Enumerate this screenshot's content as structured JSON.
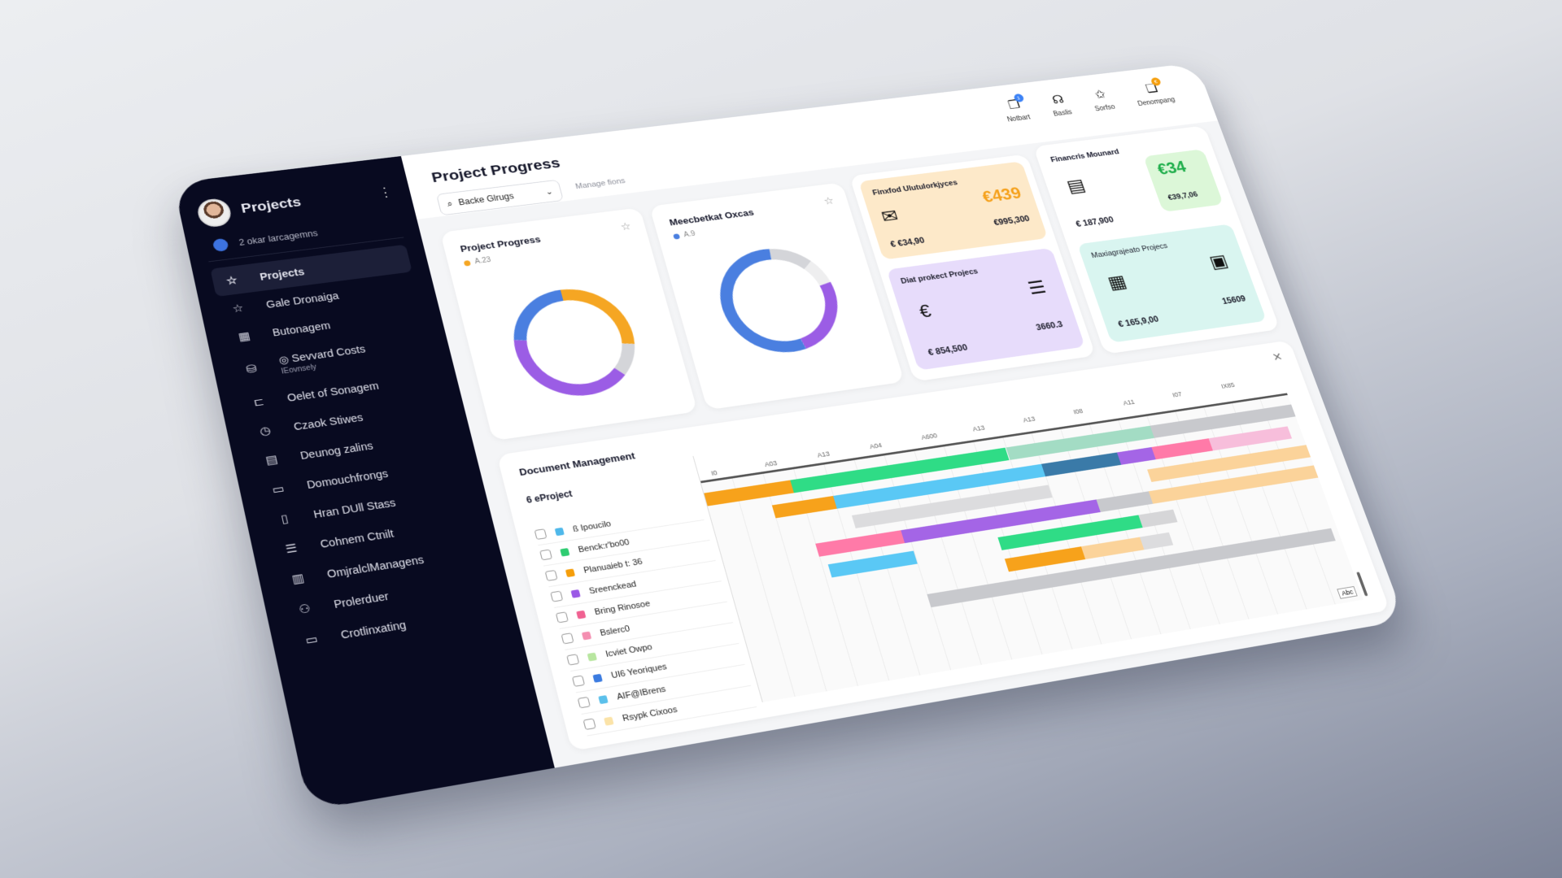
{
  "sidebar": {
    "title": "Projects",
    "subtitle": "2 okar larcagemns",
    "items": [
      {
        "label": "Projects",
        "icon": "star-icon",
        "glyph": "☆",
        "active": true
      },
      {
        "label": "Gale Dronaiga",
        "icon": "star-icon",
        "glyph": "☆"
      },
      {
        "label": "Butonagem",
        "icon": "board-icon",
        "glyph": "▦"
      },
      {
        "label": "◎ Sevvard Costs",
        "sub": "IEovnsely",
        "icon": "database-icon",
        "glyph": "⛁"
      },
      {
        "label": "Oelet of Sonagem",
        "icon": "folder-sync-icon",
        "glyph": "⊏"
      },
      {
        "label": "Czaok Stiwes",
        "icon": "clock-icon",
        "glyph": "◷"
      },
      {
        "label": "Deunog zalins",
        "icon": "calendar-icon",
        "glyph": "▤"
      },
      {
        "label": "Domouchfrongs",
        "icon": "folder-icon",
        "glyph": "▭"
      },
      {
        "label": "Hran DUll Stass",
        "icon": "tablet-icon",
        "glyph": "▯"
      },
      {
        "label": "Cohnem Ctnilt",
        "icon": "list-icon",
        "glyph": "☰"
      },
      {
        "label": "OmjralclManagens",
        "icon": "document-icon",
        "glyph": "▥"
      },
      {
        "label": "Prolerduer",
        "icon": "team-icon",
        "glyph": "⚇"
      },
      {
        "label": "Crotlinxating",
        "icon": "window-icon",
        "glyph": "▭"
      }
    ]
  },
  "header": {
    "title": "Project Progress",
    "search_value": "Backe Glrugs",
    "manage_link": "Manage fions",
    "icons": [
      {
        "label": "Notbart",
        "glyph": "❐",
        "badge": "1",
        "badge_color": "#3b82f6"
      },
      {
        "label": "Baslis",
        "glyph": "☊"
      },
      {
        "label": "Sorfso",
        "glyph": "✩"
      },
      {
        "label": "Denompang",
        "glyph": "❏",
        "badge": "€",
        "badge_color": "#f59e0b"
      }
    ]
  },
  "cards": {
    "donut1": {
      "title": "Project Progress",
      "legend": "A.23",
      "legend_color": "#f5a623"
    },
    "donut2": {
      "title": "Meecbetkat Oxcas",
      "legend": "A.9",
      "legend_color": "#4a7fe0"
    },
    "orange": {
      "title": "Finxfod Ulutulorkjyces",
      "big": "€439",
      "v1": "€ €34,90",
      "v2": "€995,300"
    },
    "purple": {
      "title": "Diat prokect Projecs",
      "v1": "€ 854,500",
      "v2": "3660.3"
    },
    "financial": {
      "title": "Financris Mounard",
      "big": "€34",
      "v_green": "€39,7,06",
      "v1": "€ 187,900"
    },
    "teal": {
      "title": "Maxiagrajeato Projecs",
      "v1": "€ 165,9,00",
      "v2": "15609"
    }
  },
  "gantt": {
    "title": "Document Management",
    "subtitle": "6 eProject",
    "abc": "Abc",
    "timeline_labels": [
      "I0",
      "A03",
      "A13",
      "A04",
      "A600",
      "A13",
      "A13",
      "I08",
      "A11",
      "I07",
      "IX85"
    ],
    "rows": [
      {
        "label": "ß Ipoucilo",
        "color": "#4fb8ea"
      },
      {
        "label": "Benck:r'bo00",
        "color": "#2ecc71"
      },
      {
        "label": "Planuaieb t: 36",
        "color": "#f59e0b"
      },
      {
        "label": "Sreenckead",
        "color": "#9b59e6"
      },
      {
        "label": "Bring Rinosoe",
        "color": "#f06292"
      },
      {
        "label": "Bslerc0",
        "color": "#f48fb1"
      },
      {
        "label": "Icviet Owpo",
        "color": "#b8e6a0"
      },
      {
        "label": "UI6 Yeoriques",
        "color": "#3b7be0"
      },
      {
        "label": "AIF@IBrens",
        "color": "#5bc0eb"
      },
      {
        "label": "Rsypk Cixoos",
        "color": "#fbe3a8"
      }
    ],
    "bars": [
      [
        [
          0,
          14,
          "#f7a21b"
        ],
        [
          14,
          50,
          "#2fdc86"
        ],
        [
          50,
          75,
          "#a3dcc4"
        ],
        [
          75,
          100,
          "#c8c9cd"
        ]
      ],
      [
        [
          10,
          20,
          "#f7a21b"
        ],
        [
          20,
          55,
          "#5ac8f5"
        ],
        [
          55,
          68,
          "#3a7aa8"
        ],
        [
          68,
          74,
          "#a465e6"
        ],
        [
          74,
          84,
          "#ff7aa8"
        ],
        [
          84,
          98,
          "#f7bedb"
        ]
      ],
      [
        [
          22,
          55,
          "#dcdcde"
        ],
        [
          72,
          100,
          "#fbd39a"
        ]
      ],
      [
        [
          15,
          29,
          "#ff7aa8"
        ],
        [
          29,
          62,
          "#a465e6"
        ],
        [
          62,
          71,
          "#c8c9cd"
        ],
        [
          71,
          100,
          "#fbd39a"
        ]
      ],
      [
        [
          16,
          30,
          "#5ac8f5"
        ],
        [
          44,
          68,
          "#2fdc86"
        ],
        [
          68,
          74,
          "#d6d6d8"
        ]
      ],
      [
        [
          44,
          57,
          "#f7a21b"
        ],
        [
          57,
          67,
          "#fbd39a"
        ],
        [
          67,
          72,
          "#dcdcde"
        ]
      ],
      [
        [
          30,
          99,
          "#c8c9cd"
        ]
      ]
    ]
  },
  "chart_data": [
    {
      "type": "pie",
      "title": "Project Progress",
      "legend": [
        "A.23"
      ],
      "values": [
        28,
        10,
        40,
        22
      ],
      "colors": [
        "#f5a623",
        "#d4d5d9",
        "#9b5de5",
        "#4a7fe0"
      ]
    },
    {
      "type": "pie",
      "title": "Meecbetkat Oxcas",
      "legend": [
        "A.9"
      ],
      "values": [
        12,
        8,
        25,
        55
      ],
      "colors": [
        "#d4d5d9",
        "#eeeeef",
        "#9b5de5",
        "#4a7fe0"
      ]
    }
  ]
}
